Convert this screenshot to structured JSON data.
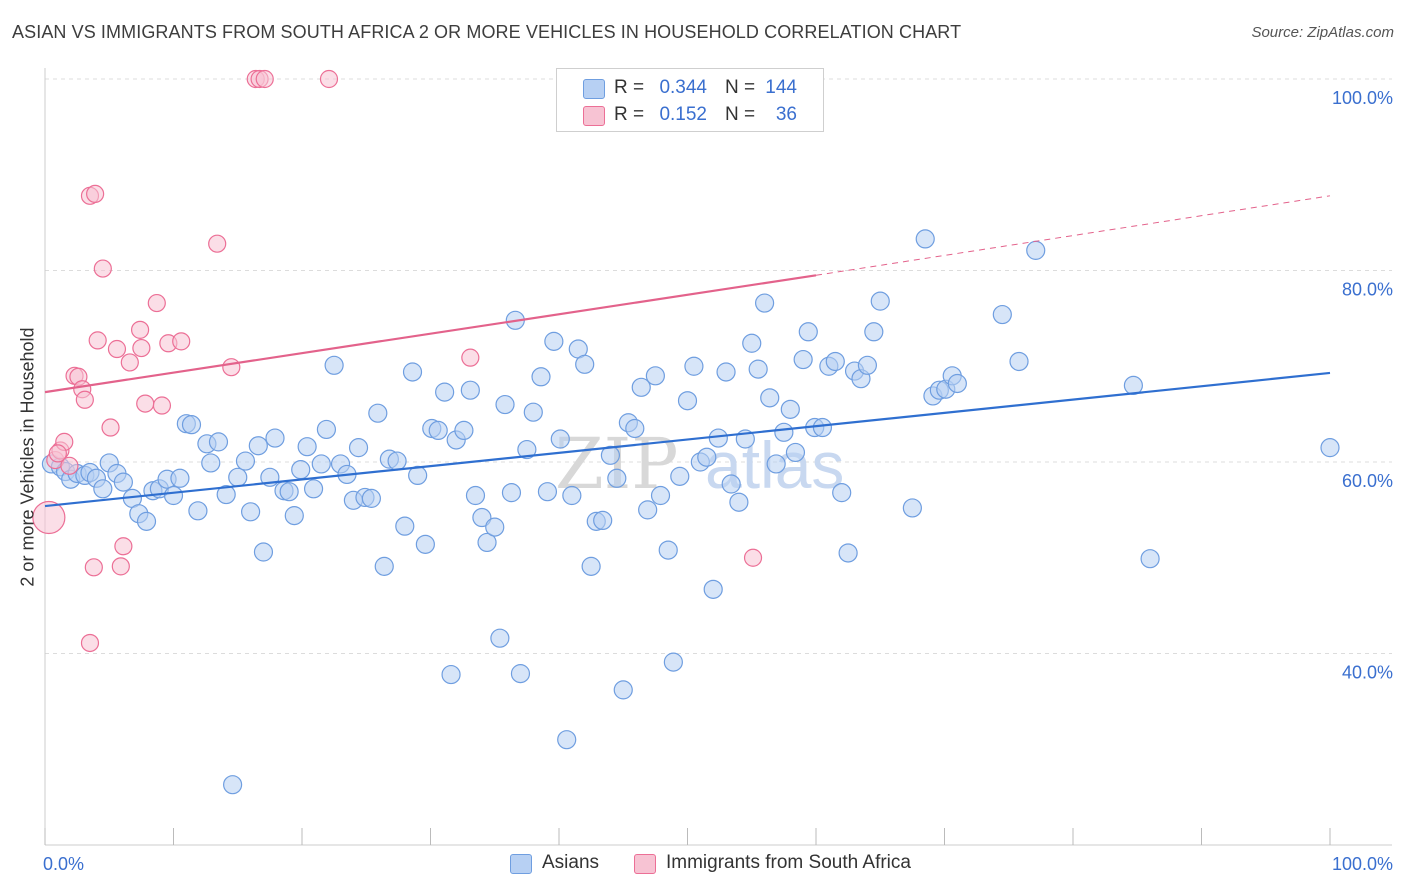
{
  "title": "ASIAN VS IMMIGRANTS FROM SOUTH AFRICA 2 OR MORE VEHICLES IN HOUSEHOLD CORRELATION CHART",
  "source": "Source: ZipAtlas.com",
  "watermark": {
    "part1": "ZIP",
    "part2": "atlas"
  },
  "colors": {
    "asians": "#6f9ee0",
    "asians_fill": "#b7d0f3",
    "immigrants": "#ec6f96",
    "immigrants_fill": "#f7c3d3",
    "axis_text": "#3a6fcf"
  },
  "legend": {
    "rows": [
      {
        "r_label": "R =",
        "r_value": "0.344",
        "n_label": "N =",
        "n_value": "144"
      },
      {
        "r_label": "R =",
        "r_value": "0.152",
        "n_label": "N =",
        "n_value": "36"
      }
    ]
  },
  "chart_data": {
    "type": "scatter",
    "xlabel": "",
    "ylabel": "2 or more Vehicles in Household",
    "xlim": [
      0,
      100
    ],
    "ylim": [
      20,
      100
    ],
    "x_tick_labels": [
      "0.0%",
      "100.0%"
    ],
    "y_tick_labels": [
      {
        "value": 100,
        "label": "100.0%"
      },
      {
        "value": 80,
        "label": "80.0%"
      },
      {
        "value": 60,
        "label": "60.0%"
      },
      {
        "value": 40,
        "label": "40.0%"
      }
    ],
    "grid": true,
    "legend_position": "top-center",
    "series": [
      {
        "name": "Asians",
        "trendline": {
          "x": [
            0,
            100
          ],
          "y": [
            55.4,
            69.3
          ]
        },
        "points": [
          [
            0.5,
            59.8
          ],
          [
            1.2,
            59.5
          ],
          [
            1.6,
            59.0
          ],
          [
            2.0,
            58.2
          ],
          [
            2.5,
            58.8
          ],
          [
            3.1,
            58.6
          ],
          [
            3.5,
            58.9
          ],
          [
            4.0,
            58.3
          ],
          [
            4.5,
            57.2
          ],
          [
            5.0,
            59.9
          ],
          [
            5.6,
            58.8
          ],
          [
            6.1,
            57.9
          ],
          [
            6.8,
            56.2
          ],
          [
            7.3,
            54.6
          ],
          [
            7.9,
            53.8
          ],
          [
            8.4,
            57.0
          ],
          [
            8.9,
            57.2
          ],
          [
            9.5,
            58.2
          ],
          [
            10.0,
            56.5
          ],
          [
            10.5,
            58.3
          ],
          [
            11.0,
            64.0
          ],
          [
            11.4,
            63.9
          ],
          [
            11.9,
            54.9
          ],
          [
            12.6,
            61.9
          ],
          [
            12.9,
            59.9
          ],
          [
            13.5,
            62.1
          ],
          [
            14.1,
            56.6
          ],
          [
            14.6,
            26.3
          ],
          [
            15.0,
            58.4
          ],
          [
            15.6,
            60.1
          ],
          [
            16.0,
            54.8
          ],
          [
            16.6,
            61.7
          ],
          [
            17.0,
            50.6
          ],
          [
            17.5,
            58.4
          ],
          [
            17.9,
            62.5
          ],
          [
            18.6,
            57.0
          ],
          [
            19.0,
            56.9
          ],
          [
            19.4,
            54.4
          ],
          [
            19.9,
            59.2
          ],
          [
            20.4,
            61.6
          ],
          [
            20.9,
            57.2
          ],
          [
            21.5,
            59.8
          ],
          [
            21.9,
            63.4
          ],
          [
            22.5,
            70.1
          ],
          [
            23.0,
            59.8
          ],
          [
            23.5,
            58.7
          ],
          [
            24.0,
            56.0
          ],
          [
            24.4,
            61.5
          ],
          [
            24.9,
            56.3
          ],
          [
            25.4,
            56.2
          ],
          [
            25.9,
            65.1
          ],
          [
            26.4,
            49.1
          ],
          [
            26.8,
            60.3
          ],
          [
            27.4,
            60.1
          ],
          [
            28.0,
            53.3
          ],
          [
            28.6,
            69.4
          ],
          [
            29.0,
            58.6
          ],
          [
            29.6,
            51.4
          ],
          [
            30.1,
            63.5
          ],
          [
            30.6,
            63.3
          ],
          [
            31.1,
            67.3
          ],
          [
            31.6,
            37.8
          ],
          [
            32.0,
            62.3
          ],
          [
            32.6,
            63.3
          ],
          [
            33.1,
            67.5
          ],
          [
            33.5,
            56.5
          ],
          [
            34.0,
            54.2
          ],
          [
            34.4,
            51.6
          ],
          [
            35.0,
            53.2
          ],
          [
            35.4,
            41.6
          ],
          [
            35.8,
            66.0
          ],
          [
            36.3,
            56.8
          ],
          [
            36.6,
            74.8
          ],
          [
            37.0,
            37.9
          ],
          [
            37.5,
            61.3
          ],
          [
            38.0,
            65.2
          ],
          [
            38.6,
            68.9
          ],
          [
            39.1,
            56.9
          ],
          [
            39.6,
            72.6
          ],
          [
            40.1,
            62.4
          ],
          [
            40.6,
            31.0
          ],
          [
            41.0,
            56.5
          ],
          [
            41.5,
            71.8
          ],
          [
            42.0,
            70.2
          ],
          [
            42.5,
            49.1
          ],
          [
            42.9,
            53.8
          ],
          [
            43.4,
            53.9
          ],
          [
            44.0,
            60.7
          ],
          [
            44.5,
            58.3
          ],
          [
            45.0,
            36.2
          ],
          [
            45.4,
            64.1
          ],
          [
            45.9,
            63.5
          ],
          [
            46.4,
            67.8
          ],
          [
            46.9,
            55.0
          ],
          [
            47.5,
            69.0
          ],
          [
            47.9,
            56.5
          ],
          [
            48.5,
            50.8
          ],
          [
            48.9,
            39.1
          ],
          [
            49.4,
            58.5
          ],
          [
            50.0,
            66.4
          ],
          [
            50.5,
            70.0
          ],
          [
            51.0,
            60.0
          ],
          [
            51.5,
            60.5
          ],
          [
            52.0,
            46.7
          ],
          [
            52.4,
            62.5
          ],
          [
            53.0,
            69.4
          ],
          [
            53.4,
            57.7
          ],
          [
            54.0,
            55.8
          ],
          [
            54.5,
            62.4
          ],
          [
            55.0,
            72.4
          ],
          [
            55.5,
            69.7
          ],
          [
            56.0,
            76.6
          ],
          [
            56.4,
            66.7
          ],
          [
            56.9,
            59.8
          ],
          [
            57.5,
            63.1
          ],
          [
            58.0,
            65.5
          ],
          [
            58.4,
            61.0
          ],
          [
            59.0,
            70.7
          ],
          [
            59.4,
            73.6
          ],
          [
            59.9,
            63.6
          ],
          [
            60.5,
            63.6
          ],
          [
            61.0,
            70.0
          ],
          [
            61.5,
            70.5
          ],
          [
            62.0,
            56.8
          ],
          [
            62.5,
            50.5
          ],
          [
            63.0,
            69.5
          ],
          [
            63.5,
            68.7
          ],
          [
            64.0,
            70.1
          ],
          [
            64.5,
            73.6
          ],
          [
            65.0,
            76.8
          ],
          [
            67.5,
            55.2
          ],
          [
            68.5,
            83.3
          ],
          [
            69.1,
            66.9
          ],
          [
            69.6,
            67.5
          ],
          [
            70.1,
            67.6
          ],
          [
            70.6,
            69.0
          ],
          [
            71.0,
            68.2
          ],
          [
            74.5,
            75.4
          ],
          [
            75.8,
            70.5
          ],
          [
            77.1,
            82.1
          ],
          [
            84.7,
            68.0
          ],
          [
            86.0,
            49.9
          ],
          [
            100.0,
            61.5
          ]
        ]
      },
      {
        "name": "Immigrants from South Africa",
        "trendline": {
          "x": [
            0,
            60
          ],
          "y": [
            67.3,
            79.5
          ]
        },
        "trendline_extension": {
          "x": [
            60,
            100
          ],
          "y": [
            79.5,
            87.8
          ]
        },
        "points": [
          [
            0.3,
            54.2
          ],
          [
            0.8,
            60.2
          ],
          [
            1.2,
            61.2
          ],
          [
            1.5,
            62.1
          ],
          [
            1.9,
            59.6
          ],
          [
            2.3,
            69.0
          ],
          [
            2.6,
            68.9
          ],
          [
            2.9,
            67.6
          ],
          [
            3.1,
            66.5
          ],
          [
            3.5,
            87.8
          ],
          [
            3.9,
            88.0
          ],
          [
            3.8,
            49.0
          ],
          [
            4.1,
            72.7
          ],
          [
            4.5,
            80.2
          ],
          [
            5.1,
            63.6
          ],
          [
            5.6,
            71.8
          ],
          [
            5.9,
            49.1
          ],
          [
            6.1,
            51.2
          ],
          [
            6.6,
            70.4
          ],
          [
            7.4,
            73.8
          ],
          [
            7.5,
            71.9
          ],
          [
            7.8,
            66.1
          ],
          [
            8.7,
            76.6
          ],
          [
            9.1,
            65.9
          ],
          [
            9.6,
            72.4
          ],
          [
            10.6,
            72.6
          ],
          [
            13.4,
            82.8
          ],
          [
            14.5,
            69.9
          ],
          [
            16.4,
            100.0
          ],
          [
            16.7,
            100.0
          ],
          [
            17.1,
            100.0
          ],
          [
            22.1,
            100.0
          ],
          [
            33.1,
            70.9
          ],
          [
            55.1,
            50.0
          ],
          [
            3.5,
            41.1
          ],
          [
            1.0,
            60.9
          ]
        ]
      }
    ]
  },
  "bottom_legend": {
    "asians_label": "Asians",
    "immigrants_label": "Immigrants from South Africa"
  }
}
